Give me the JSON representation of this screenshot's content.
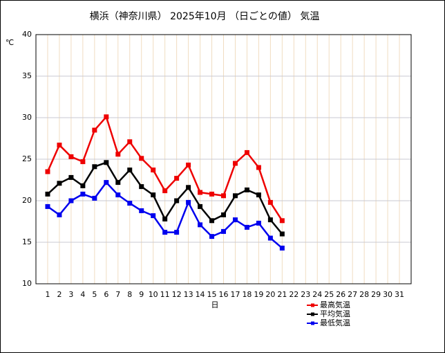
{
  "chart_data": {
    "type": "line",
    "title": "横浜（神奈川県） 2025年10月 （日ごとの値） 気温",
    "y_label": "℃",
    "x_label": "日",
    "x": [
      1,
      2,
      3,
      4,
      5,
      6,
      7,
      8,
      9,
      10,
      11,
      12,
      13,
      14,
      15,
      16,
      17,
      18,
      19,
      20,
      21
    ],
    "xlim": [
      0,
      32
    ],
    "xticks": [
      1,
      2,
      3,
      4,
      5,
      6,
      7,
      8,
      9,
      10,
      11,
      12,
      13,
      14,
      15,
      16,
      17,
      18,
      19,
      20,
      21,
      22,
      23,
      24,
      25,
      26,
      27,
      28,
      29,
      30,
      31
    ],
    "ylim": [
      10,
      40
    ],
    "yticks": [
      10,
      15,
      20,
      25,
      30,
      35,
      40
    ],
    "grid": true,
    "series": [
      {
        "name": "最高気温",
        "color": "#ee0000",
        "values": [
          23.5,
          26.7,
          25.3,
          24.7,
          28.5,
          30.1,
          25.6,
          27.1,
          25.1,
          23.7,
          21.2,
          22.7,
          24.3,
          21.0,
          20.8,
          20.6,
          24.5,
          25.8,
          24.0,
          19.8,
          17.6
        ]
      },
      {
        "name": "平均気温",
        "color": "#000000",
        "values": [
          20.8,
          22.1,
          22.8,
          21.8,
          24.1,
          24.6,
          22.2,
          23.7,
          21.7,
          20.7,
          17.8,
          20.0,
          21.6,
          19.3,
          17.6,
          18.3,
          20.6,
          21.3,
          20.7,
          17.7,
          16.0
        ]
      },
      {
        "name": "最低気温",
        "color": "#0000ee",
        "values": [
          19.3,
          18.3,
          20.0,
          20.8,
          20.3,
          22.2,
          20.7,
          19.7,
          18.8,
          18.2,
          16.2,
          16.2,
          19.8,
          17.1,
          15.7,
          16.3,
          17.7,
          16.8,
          17.3,
          15.5,
          14.3
        ]
      }
    ]
  }
}
